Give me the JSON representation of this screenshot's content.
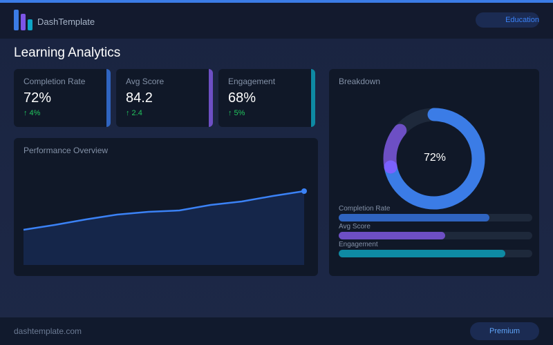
{
  "app": {
    "brand": "DashTemplate",
    "category_pill": "Education",
    "page_title": "Learning Analytics"
  },
  "colors": {
    "accent": "#3b7ce6",
    "purple": "#6d4fc4",
    "teal": "#0e8aa3",
    "positive": "#22c55e"
  },
  "stats": [
    {
      "label": "Completion Rate",
      "value": "72%",
      "change": "↑ 4%",
      "color": "#2f64c0"
    },
    {
      "label": "Avg Score",
      "value": "84.2",
      "change": "↑ 2.4",
      "color": "#6d4fc4"
    },
    {
      "label": "Engagement",
      "value": "68%",
      "change": "↑ 5%",
      "color": "#0e8aa3"
    }
  ],
  "performance": {
    "title": "Performance Overview"
  },
  "chart_data": {
    "type": "area",
    "title": "Performance Overview",
    "values": [
      51,
      58,
      66,
      73,
      77,
      79,
      87,
      92,
      100,
      107
    ],
    "ylim": [
      0,
      150
    ],
    "grid": false,
    "color": "#3b82f6"
  },
  "breakdown": {
    "title": "Breakdown",
    "center_label": "72%",
    "donut": {
      "primary_fraction": 0.72,
      "secondary_fraction": 0.14
    },
    "bars": [
      {
        "label": "Completion Rate",
        "fraction": 0.78,
        "color": "#2f64c0"
      },
      {
        "label": "Avg Score",
        "fraction": 0.55,
        "color": "#6d4fc4"
      },
      {
        "label": "Engagement",
        "fraction": 0.86,
        "color": "#0e8aa3"
      }
    ]
  },
  "footer": {
    "site": "dashtemplate.com",
    "button": "Premium"
  }
}
